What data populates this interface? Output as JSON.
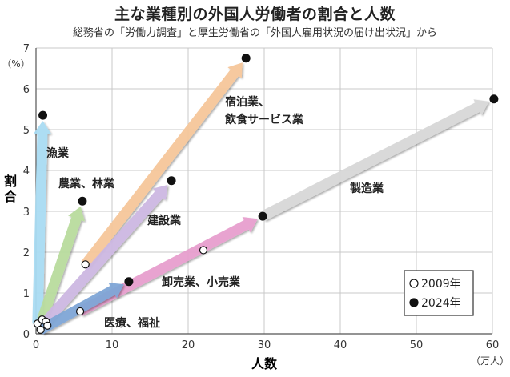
{
  "title": "主な業種別の外国人労働者の割合と人数",
  "subtitle": "総務省の「労働力調査」と厚生労働省の「外国人雇用状況の届け出状況」から",
  "chart_data": {
    "type": "scatter",
    "xlabel": "人数",
    "x_unit": "（万人）",
    "ylabel": "割合",
    "y_unit": "（%）",
    "xlim": [
      0,
      60
    ],
    "ylim": [
      0,
      7
    ],
    "x_ticks": [
      "0",
      "10",
      "20",
      "30",
      "40",
      "50",
      "60"
    ],
    "y_ticks": [
      "0",
      "1",
      "2",
      "3",
      "4",
      "5",
      "6",
      "7"
    ],
    "legend": [
      {
        "label": "2009年",
        "marker": "open-circle"
      },
      {
        "label": "2024年",
        "marker": "filled-circle"
      }
    ],
    "legend_position": "bottom-right",
    "series": [
      {
        "name": "漁業",
        "color": "#a9dcf3",
        "x": [
          0.2,
          0.9
        ],
        "y": [
          0.25,
          5.35
        ]
      },
      {
        "name": "農業、林業",
        "color": "#b9dc9e",
        "x": [
          0.8,
          6.1
        ],
        "y": [
          0.35,
          3.25
        ]
      },
      {
        "name": "宿泊業、飲食サービス業",
        "color": "#f6c79a",
        "x": [
          6.5,
          27.6
        ],
        "y": [
          1.7,
          6.75
        ]
      },
      {
        "name": "建設業",
        "color": "#cdb8e2",
        "x": [
          1.3,
          17.8
        ],
        "y": [
          0.3,
          3.75
        ]
      },
      {
        "name": "製造業",
        "color": "#d8d8d8",
        "x": [
          29.8,
          60.2
        ],
        "y": [
          2.88,
          5.75
        ]
      },
      {
        "name": "卸売業、小売業",
        "color": "#e79fce",
        "x": [
          5.8,
          29.8
        ],
        "y": [
          0.55,
          2.88
        ]
      },
      {
        "name": "医療、福祉",
        "color": "#7fa6d6",
        "x": [
          0.6,
          12.2
        ],
        "y": [
          0.1,
          1.28
        ]
      }
    ],
    "extra_points_2009": [
      {
        "x": 1.5,
        "y": 0.2
      },
      {
        "x": 22.0,
        "y": 2.05
      }
    ]
  }
}
